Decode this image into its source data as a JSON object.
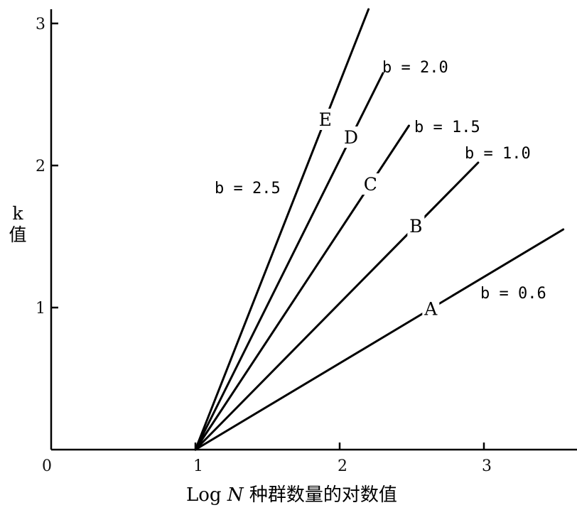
{
  "chart_data": {
    "type": "line",
    "xlabel": {
      "prefix": "Log ",
      "var": "N",
      "suffix": "种群数量的对数值"
    },
    "ylabel": {
      "line1": "k",
      "line2": "值"
    },
    "xlim": [
      0,
      3.6
    ],
    "ylim": [
      0,
      3
    ],
    "x_ticks": [
      "0",
      "1",
      "2",
      "3"
    ],
    "y_ticks": [
      "1",
      "2",
      "3"
    ],
    "grid": false,
    "series": [
      {
        "name": "A",
        "slope_label": "b = 0.6",
        "x": [
          1,
          3.55
        ],
        "y": [
          0,
          1.55
        ]
      },
      {
        "name": "B",
        "slope_label": "b = 1.0",
        "x": [
          1,
          2.96
        ],
        "y": [
          0,
          2.02
        ]
      },
      {
        "name": "C",
        "slope_label": "b = 1.5",
        "x": [
          1,
          2.48
        ],
        "y": [
          0,
          2.28
        ]
      },
      {
        "name": "D",
        "slope_label": "b = 2.0",
        "x": [
          1,
          2.3
        ],
        "y": [
          0,
          2.65
        ]
      },
      {
        "name": "E",
        "slope_label": "b = 2.5",
        "x": [
          1,
          2.2
        ],
        "y": [
          0,
          3.1
        ]
      }
    ]
  }
}
